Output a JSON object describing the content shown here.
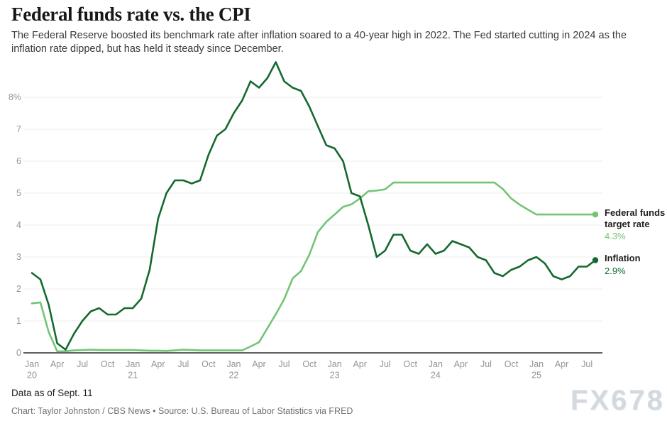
{
  "header": {
    "title": "Federal funds rate vs. the CPI",
    "subtitle_line1": "The Federal Reserve boosted its benchmark rate after inflation soared to a 40-year high in 2022. The Fed started cutting in 2024 as the",
    "subtitle_line2": "inflation rate dipped, but has held it steady since December."
  },
  "chart_data": {
    "type": "line",
    "x_range": [
      "Jan 2020",
      "Aug 2025"
    ],
    "x_unit": "month",
    "ylim": [
      0,
      9.15
    ],
    "grid": true,
    "legend_position": "right-end-of-lines",
    "colors": {
      "fed_funds": "#74c476",
      "inflation": "#15692e",
      "gridline": "#ececec",
      "axis": "#2b2b2b",
      "tick_label": "#949494"
    },
    "y_ticks": [
      {
        "value": 0,
        "label": "0"
      },
      {
        "value": 1,
        "label": "1"
      },
      {
        "value": 2,
        "label": "2"
      },
      {
        "value": 3,
        "label": "3"
      },
      {
        "value": 4,
        "label": "4"
      },
      {
        "value": 5,
        "label": "5"
      },
      {
        "value": 6,
        "label": "6"
      },
      {
        "value": 7,
        "label": "7"
      },
      {
        "value": 8,
        "label": "8%"
      }
    ],
    "x_ticks": [
      {
        "month_index": 0,
        "label": "Jan",
        "year": "20"
      },
      {
        "month_index": 3,
        "label": "Apr"
      },
      {
        "month_index": 6,
        "label": "Jul"
      },
      {
        "month_index": 9,
        "label": "Oct"
      },
      {
        "month_index": 12,
        "label": "Jan",
        "year": "21"
      },
      {
        "month_index": 15,
        "label": "Apr"
      },
      {
        "month_index": 18,
        "label": "Jul"
      },
      {
        "month_index": 21,
        "label": "Oct"
      },
      {
        "month_index": 24,
        "label": "Jan",
        "year": "22"
      },
      {
        "month_index": 27,
        "label": "Apr"
      },
      {
        "month_index": 30,
        "label": "Jul"
      },
      {
        "month_index": 33,
        "label": "Oct"
      },
      {
        "month_index": 36,
        "label": "Jan",
        "year": "23"
      },
      {
        "month_index": 39,
        "label": "Apr"
      },
      {
        "month_index": 42,
        "label": "Jul"
      },
      {
        "month_index": 45,
        "label": "Oct"
      },
      {
        "month_index": 48,
        "label": "Jan",
        "year": "24"
      },
      {
        "month_index": 51,
        "label": "Apr"
      },
      {
        "month_index": 54,
        "label": "Jul"
      },
      {
        "month_index": 57,
        "label": "Oct"
      },
      {
        "month_index": 60,
        "label": "Jan",
        "year": "25"
      },
      {
        "month_index": 63,
        "label": "Apr"
      },
      {
        "month_index": 66,
        "label": "Jul"
      }
    ],
    "series": [
      {
        "name": "Federal funds target rate",
        "name_lines": [
          "Federal funds",
          "target rate"
        ],
        "end_label": "4.3%",
        "color": "#74c476",
        "values": [
          1.55,
          1.58,
          0.65,
          0.05,
          0.05,
          0.08,
          0.09,
          0.1,
          0.09,
          0.09,
          0.09,
          0.09,
          0.09,
          0.08,
          0.07,
          0.07,
          0.06,
          0.08,
          0.1,
          0.09,
          0.08,
          0.08,
          0.08,
          0.08,
          0.08,
          0.08,
          0.2,
          0.33,
          0.77,
          1.21,
          1.68,
          2.33,
          2.56,
          3.08,
          3.78,
          4.1,
          4.33,
          4.57,
          4.65,
          4.83,
          5.06,
          5.08,
          5.12,
          5.33,
          5.33,
          5.33,
          5.33,
          5.33,
          5.33,
          5.33,
          5.33,
          5.33,
          5.33,
          5.33,
          5.33,
          5.33,
          5.13,
          4.83,
          4.64,
          4.48,
          4.33,
          4.33,
          4.33,
          4.33,
          4.33,
          4.33,
          4.33,
          4.33
        ]
      },
      {
        "name": "Inflation",
        "name_lines": [
          "Inflation"
        ],
        "end_label": "2.9%",
        "color": "#15692e",
        "values": [
          2.5,
          2.3,
          1.5,
          0.3,
          0.1,
          0.6,
          1.0,
          1.3,
          1.4,
          1.2,
          1.2,
          1.4,
          1.4,
          1.7,
          2.6,
          4.2,
          5.0,
          5.4,
          5.4,
          5.3,
          5.4,
          6.2,
          6.8,
          7.0,
          7.5,
          7.9,
          8.5,
          8.3,
          8.6,
          9.1,
          8.5,
          8.3,
          8.2,
          7.7,
          7.1,
          6.5,
          6.4,
          6.0,
          5.0,
          4.9,
          4.0,
          3.0,
          3.2,
          3.7,
          3.7,
          3.2,
          3.1,
          3.4,
          3.1,
          3.2,
          3.5,
          3.4,
          3.3,
          3.0,
          2.9,
          2.5,
          2.4,
          2.6,
          2.7,
          2.9,
          3.0,
          2.8,
          2.4,
          2.3,
          2.4,
          2.7,
          2.7,
          2.9
        ]
      }
    ]
  },
  "footer": {
    "data_note": "Data as of Sept. 11",
    "credit": "Chart: Taylor Johnston / CBS News • Source: U.S. Bureau of Labor Statistics via FRED"
  },
  "watermark": "FX678"
}
